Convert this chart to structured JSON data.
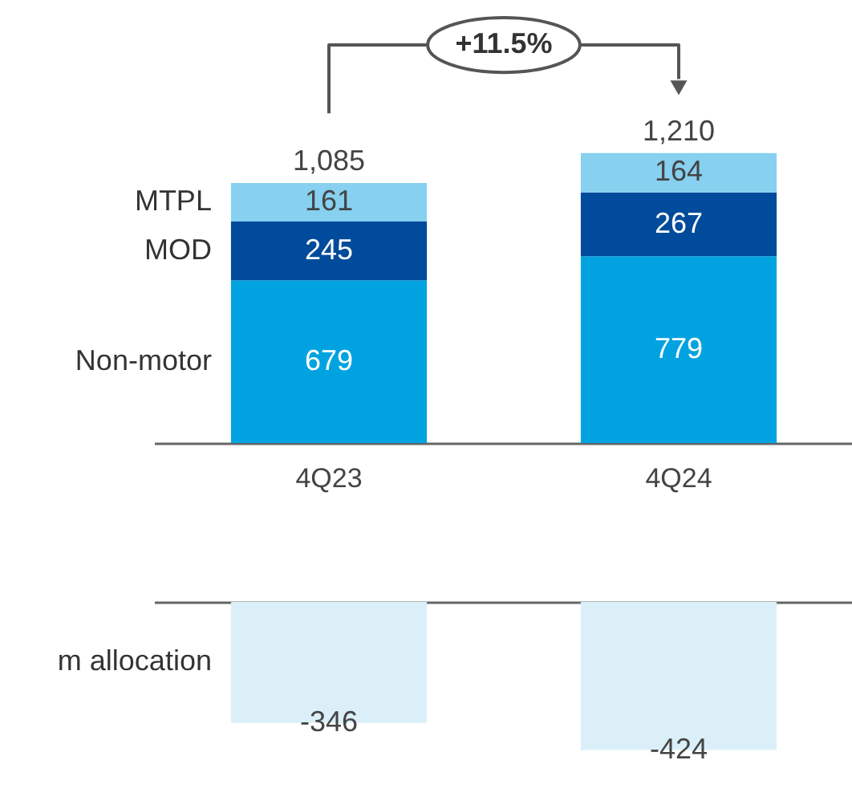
{
  "chart_data": [
    {
      "type": "bar",
      "categories": [
        "4Q23",
        "4Q24"
      ],
      "stacked": true,
      "data_labels": true,
      "tick_labels": "x",
      "totals": [
        "1,085",
        "1,210"
      ],
      "annotations": [
        "+11.5%"
      ],
      "series": [
        {
          "name": "Non-motor",
          "color": "#00a3e0",
          "values": [
            679,
            779
          ]
        },
        {
          "name": "MOD",
          "color": "#004b9b",
          "values": [
            245,
            267
          ]
        },
        {
          "name": "MTPL",
          "color": "#87d0f0",
          "values": [
            161,
            164
          ]
        }
      ]
    },
    {
      "type": "bar",
      "categories": [
        null,
        null
      ],
      "data_labels": true,
      "tick_labels": false,
      "series": [
        {
          "name": "m allocation",
          "color": "#dbeff8",
          "values": [
            -346,
            -424
          ]
        }
      ]
    }
  ]
}
